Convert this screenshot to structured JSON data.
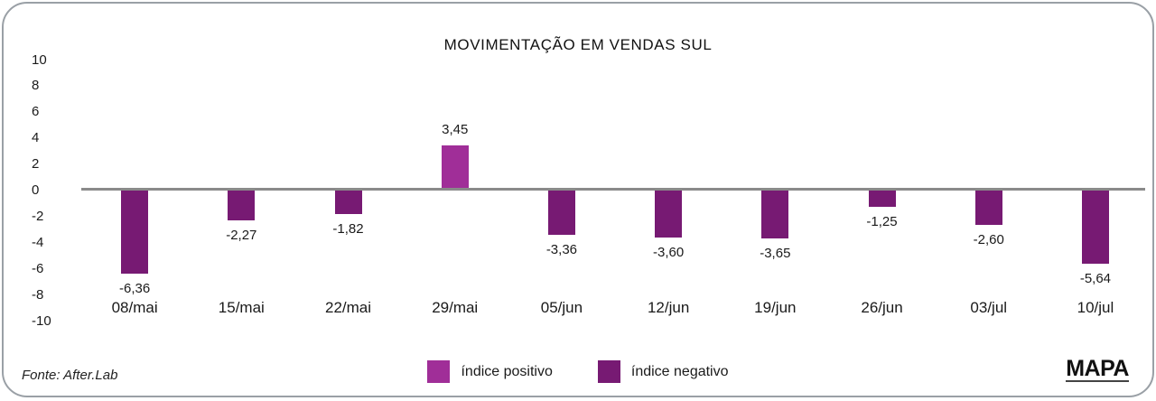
{
  "header": {
    "title": "MOVIMENTAÇÃO EM VENDAS SUL"
  },
  "chart_data": {
    "type": "bar",
    "title": "MOVIMENTAÇÃO EM VENDAS SUL",
    "categories": [
      "08/mai",
      "15/mai",
      "22/mai",
      "29/mai",
      "05/jun",
      "12/jun",
      "19/jun",
      "26/jun",
      "03/jul",
      "10/jul"
    ],
    "values": [
      -6.36,
      -2.27,
      -1.82,
      3.45,
      -3.36,
      -3.6,
      -3.65,
      -1.25,
      -2.6,
      -5.64
    ],
    "value_labels": [
      "-6,36",
      "-2,27",
      "-1,82",
      "3,45",
      "-3,36",
      "-3,60",
      "-3,65",
      "-1,25",
      "-2,60",
      "-5,64"
    ],
    "ylim": [
      -10,
      10
    ],
    "yticks": [
      10,
      8,
      6,
      4,
      2,
      0,
      -2,
      -4,
      -6,
      -8,
      -10
    ],
    "ytick_labels": [
      "10",
      "8",
      "6",
      "4",
      "2",
      "0",
      "-2",
      "-4",
      "-6",
      "-8",
      "-10"
    ],
    "grid": false,
    "legend_position": "bottom",
    "colors": {
      "positive": "#a02e98",
      "negative": "#771a73",
      "zero_line": "#8a8a8a"
    }
  },
  "legend": {
    "items": [
      {
        "label": "índice positivo",
        "color": "#a02e98",
        "kind": "positive"
      },
      {
        "label": "índice negativo",
        "color": "#771a73",
        "kind": "negative"
      }
    ]
  },
  "footer": {
    "source": "Fonte: After.Lab",
    "brand": "MAPA"
  }
}
